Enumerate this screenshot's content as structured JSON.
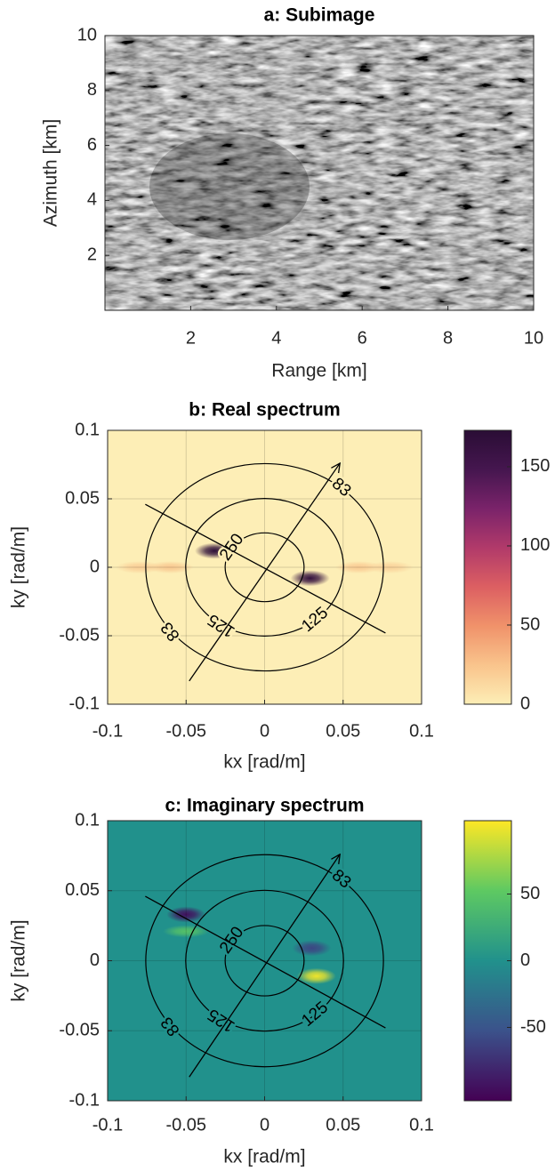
{
  "chart_data": [
    {
      "type": "image",
      "title": "a:   Subimage",
      "xlabel": "Range [km]",
      "ylabel": "Azimuth [km]",
      "xlim": [
        0,
        10
      ],
      "ylim": [
        0,
        10
      ],
      "xticks": [
        2,
        4,
        6,
        8,
        10
      ],
      "yticks": [
        2,
        4,
        6,
        8,
        10
      ]
    },
    {
      "type": "heatmap",
      "title": "b:   Real spectrum",
      "xlabel": "kx [rad/m]",
      "ylabel": "ky [rad/m]",
      "xlim": [
        -0.1,
        0.1
      ],
      "ylim": [
        -0.1,
        0.1
      ],
      "xticks": [
        -0.1,
        -0.05,
        0,
        0.05,
        0.1
      ],
      "yticks": [
        -0.1,
        -0.05,
        0,
        0.05,
        0.1
      ],
      "grid": true,
      "clim": [
        0,
        173
      ],
      "cticks": [
        0,
        50,
        100,
        150
      ],
      "colormap": [
        "#fdeeb6",
        "#f9c48c",
        "#f0926a",
        "#dc5f62",
        "#b13a6a",
        "#7a236a",
        "#45164f",
        "#2a0d35"
      ],
      "peaks": [
        {
          "x": -0.032,
          "y": 0.012,
          "value": 170
        },
        {
          "x": 0.029,
          "y": -0.008,
          "value": 165
        },
        {
          "x": -0.08,
          "y": 0,
          "value": 18
        },
        {
          "x": -0.06,
          "y": 0,
          "value": 22
        },
        {
          "x": 0.06,
          "y": 0,
          "value": 20
        },
        {
          "x": 0.08,
          "y": 0,
          "value": 16
        }
      ],
      "contours": [
        83,
        125,
        250
      ],
      "lines": [
        {
          "x": [
            -0.076,
            0.077
          ],
          "y": [
            0.046,
            -0.048
          ],
          "arrow": false
        },
        {
          "x": [
            -0.048,
            0.048
          ],
          "y": [
            -0.083,
            0.076
          ],
          "arrow": true
        }
      ]
    },
    {
      "type": "heatmap",
      "title": "c:   Imaginary spectrum",
      "xlabel": "kx [rad/m]",
      "ylabel": "ky [rad/m]",
      "xlim": [
        -0.1,
        0.1
      ],
      "ylim": [
        -0.1,
        0.1
      ],
      "xticks": [
        -0.1,
        -0.05,
        0,
        0.05,
        0.1
      ],
      "yticks": [
        -0.1,
        -0.05,
        0,
        0.05,
        0.1
      ],
      "grid": true,
      "clim": [
        -105,
        105
      ],
      "cticks": [
        -50,
        0,
        50
      ],
      "colormap": [
        "#440154",
        "#3b528b",
        "#21918c",
        "#5ec962",
        "#fde725"
      ],
      "peaks": [
        {
          "x": -0.05,
          "y": 0.033,
          "value": -95
        },
        {
          "x": -0.05,
          "y": 0.021,
          "value": 45
        },
        {
          "x": 0.03,
          "y": 0.009,
          "value": -60
        },
        {
          "x": 0.033,
          "y": -0.011,
          "value": 100
        }
      ],
      "contours": [
        83,
        125,
        250
      ],
      "lines": [
        {
          "x": [
            -0.076,
            0.077
          ],
          "y": [
            0.046,
            -0.048
          ],
          "arrow": false
        },
        {
          "x": [
            -0.048,
            0.048
          ],
          "y": [
            -0.083,
            0.076
          ],
          "arrow": true
        }
      ]
    }
  ]
}
